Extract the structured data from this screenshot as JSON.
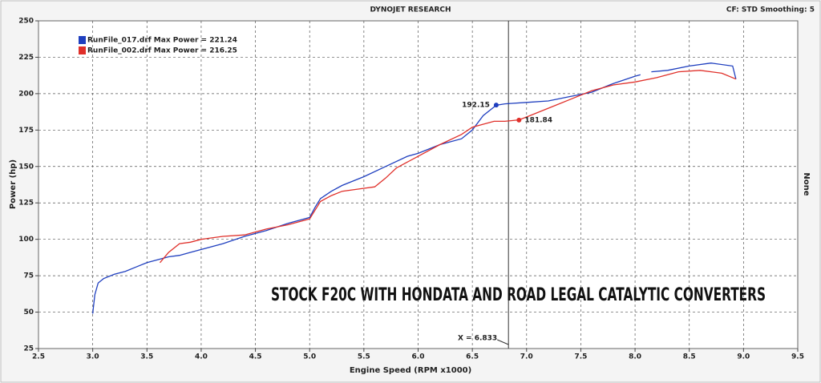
{
  "chart_data": {
    "type": "line",
    "title": "DYNOJET RESEARCH",
    "subtitle": "CF: STD  Smoothing: 5",
    "x_label": "Engine Speed (RPM x1000)",
    "y_label": "Power (hp)",
    "y2_label": "None",
    "overlay_text": "STOCK F20C WITH HONDATA AND ROAD LEGAL CATALYTIC CONVERTERS",
    "xlim": [
      2.5,
      9.5
    ],
    "ylim": [
      25,
      250
    ],
    "xticks": [
      2.5,
      {
        "value": 3,
        "label": "3.0"
      },
      3.5,
      {
        "value": 4,
        "label": "4.0"
      },
      4.5,
      {
        "value": 5,
        "label": "5.0"
      },
      5.5,
      {
        "value": 6,
        "label": "6.0"
      },
      6.5,
      {
        "value": 7,
        "label": "7.0"
      },
      7.5,
      {
        "value": 8,
        "label": "8.0"
      },
      8.5,
      {
        "value": 9,
        "label": "9.0"
      },
      9.5
    ],
    "yticks": [
      25,
      50,
      75,
      100,
      125,
      150,
      175,
      200,
      225,
      250
    ],
    "grid": true,
    "series": [
      {
        "name": "RunFile_017.drf Max Power = 221.24",
        "color": "#1f3fbf",
        "x": [
          3.0,
          3.02,
          3.05,
          3.1,
          3.2,
          3.3,
          3.4,
          3.5,
          3.6,
          3.7,
          3.8,
          3.9,
          4.0,
          4.2,
          4.4,
          4.6,
          4.8,
          5.0,
          5.05,
          5.1,
          5.2,
          5.3,
          5.5,
          5.7,
          5.9,
          6.0,
          6.2,
          6.4,
          6.5,
          6.6,
          6.72,
          6.8,
          7.0,
          7.2,
          7.4,
          7.6,
          7.8,
          8.0,
          8.05,
          8.1,
          8.15,
          8.3,
          8.5,
          8.7,
          8.9,
          8.93
        ],
        "values": [
          49,
          62,
          70,
          73,
          76,
          78,
          81,
          84,
          86,
          88,
          89,
          91,
          93,
          97,
          102,
          106,
          111,
          115,
          122,
          128,
          133,
          137,
          143,
          150,
          157,
          159,
          165,
          169,
          175,
          185,
          192,
          193,
          194,
          195,
          198,
          201,
          207,
          212,
          213,
          null,
          215,
          216,
          219,
          221,
          219,
          210
        ]
      },
      {
        "name": "RunFile_002.drf Max Power = 216.25",
        "color": "#e0302a",
        "x": [
          3.62,
          3.7,
          3.8,
          3.9,
          4.0,
          4.2,
          4.4,
          4.6,
          4.8,
          5.0,
          5.1,
          5.2,
          5.3,
          5.5,
          5.6,
          5.7,
          5.8,
          6.0,
          6.2,
          6.4,
          6.5,
          6.7,
          6.8,
          6.93,
          7.0,
          7.2,
          7.4,
          7.6,
          7.8,
          8.0,
          8.2,
          8.4,
          8.6,
          8.8,
          8.93
        ],
        "values": [
          84,
          91,
          97,
          98,
          100,
          102,
          103,
          107,
          110,
          114,
          126,
          130,
          133,
          135,
          136,
          142,
          149,
          157,
          165,
          172,
          177,
          181,
          181,
          182,
          184,
          190,
          196,
          202,
          206,
          208,
          211,
          215,
          216,
          214,
          210
        ]
      }
    ],
    "markers": [
      {
        "x": 6.72,
        "y": 192.15,
        "color": "#1f3fbf"
      },
      {
        "x": 6.93,
        "y": 181.84,
        "color": "#e0302a"
      }
    ],
    "cursor": {
      "value": 6.833,
      "label": "X = 6.833"
    }
  }
}
